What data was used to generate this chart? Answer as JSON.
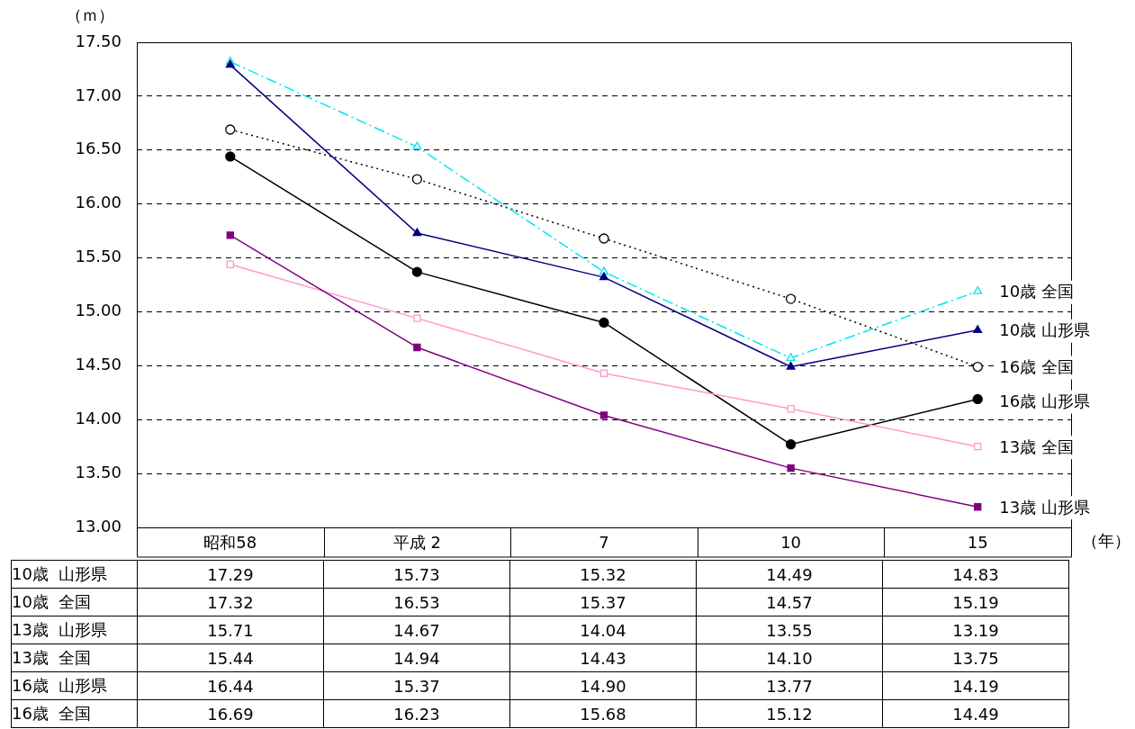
{
  "chart_data": {
    "type": "line",
    "ylabel": "（ｍ）",
    "xlabel": "（年）",
    "categories": [
      "昭和58",
      "平成 2",
      "7",
      "10",
      "15"
    ],
    "ylim": [
      13,
      17.5
    ],
    "yticks": [
      {
        "value": 13,
        "label": "13.00"
      },
      {
        "value": 13.5,
        "label": "13.50"
      },
      {
        "value": 14,
        "label": "14.00"
      },
      {
        "value": 14.5,
        "label": "14.50"
      },
      {
        "value": 15,
        "label": "15.00"
      },
      {
        "value": 15.5,
        "label": "15.50"
      },
      {
        "value": 16,
        "label": "16.00"
      },
      {
        "value": 16.5,
        "label": "16.50"
      },
      {
        "value": 17,
        "label": "17.00"
      },
      {
        "value": 17.5,
        "label": "17.50"
      }
    ],
    "grid": "y",
    "legend": false,
    "series": [
      {
        "name": "10歳 山形県",
        "color": "#000080",
        "marker": "triangle",
        "line_style": "solid",
        "values": [
          17.29,
          15.73,
          15.32,
          14.49,
          14.83
        ],
        "value_labels": [
          "17.29",
          "15.73",
          "15.32",
          "14.49",
          "14.83"
        ]
      },
      {
        "name": "10歳 全国",
        "color": "#00e5ee",
        "marker": "triangle",
        "line_style": "dashed",
        "values": [
          17.32,
          16.53,
          15.37,
          14.57,
          15.19
        ],
        "value_labels": [
          "17.32",
          "16.53",
          "15.37",
          "14.57",
          "15.19"
        ]
      },
      {
        "name": "13歳 山形県",
        "color": "#800080",
        "marker": "square",
        "line_style": "solid",
        "values": [
          15.71,
          14.67,
          14.04,
          13.55,
          13.19
        ],
        "value_labels": [
          "15.71",
          "14.67",
          "14.04",
          "13.55",
          "13.19"
        ]
      },
      {
        "name": "13歳 全国",
        "color": "#ff99cc",
        "marker": "square",
        "line_style": "solid",
        "values": [
          15.44,
          14.94,
          14.43,
          14.1,
          13.75
        ],
        "value_labels": [
          "15.44",
          "14.94",
          "14.43",
          "14.10",
          "13.75"
        ]
      },
      {
        "name": "16歳 山形県",
        "color": "#000000",
        "marker": "circle",
        "line_style": "solid",
        "values": [
          16.44,
          15.37,
          14.9,
          13.77,
          14.19
        ],
        "value_labels": [
          "16.44",
          "15.37",
          "14.90",
          "13.77",
          "14.19"
        ]
      },
      {
        "name": "16歳 全国",
        "color": "#000000",
        "marker": "circle",
        "line_style": "dotted",
        "values": [
          16.69,
          16.23,
          15.68,
          15.12,
          14.49
        ],
        "value_labels": [
          "16.69",
          "16.23",
          "15.68",
          "15.12",
          "14.49"
        ]
      }
    ]
  }
}
